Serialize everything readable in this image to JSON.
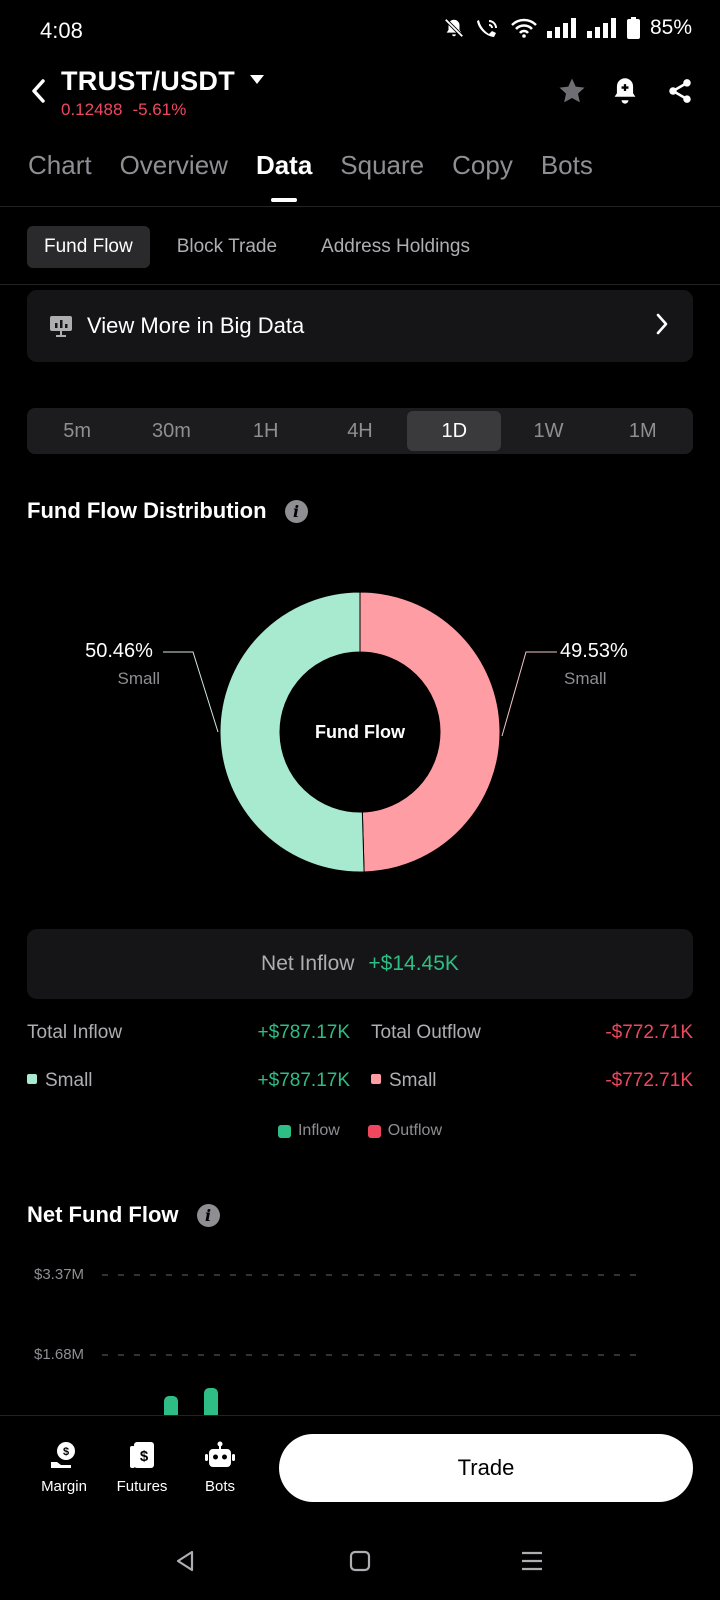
{
  "status_bar": {
    "time": "4:08",
    "battery": "85%"
  },
  "header": {
    "pair": "TRUST/USDT",
    "price": "0.12488",
    "change": "-5.61%"
  },
  "main_tabs": [
    "Chart",
    "Overview",
    "Data",
    "Square",
    "Copy",
    "Bots"
  ],
  "main_tabs_active": "Data",
  "sub_tabs": [
    "Fund Flow",
    "Block Trade",
    "Address Holdings"
  ],
  "sub_tabs_active": "Fund Flow",
  "big_data": {
    "label": "View More in Big Data"
  },
  "intervals": [
    "5m",
    "30m",
    "1H",
    "4H",
    "1D",
    "1W",
    "1M"
  ],
  "interval_active": "1D",
  "distribution": {
    "title": "Fund Flow Distribution",
    "center_label": "Fund Flow",
    "inflow": {
      "pct": "50.46%",
      "category": "Small"
    },
    "outflow": {
      "pct": "49.53%",
      "category": "Small"
    }
  },
  "chart_data": [
    {
      "type": "pie",
      "title": "Fund Flow Distribution",
      "categories": [
        "Small (Inflow)",
        "Small (Outflow)"
      ],
      "values": [
        50.46,
        49.53
      ],
      "colors": [
        "#a8ead0",
        "#ff9da4"
      ]
    },
    {
      "type": "bar",
      "title": "Net Fund Flow",
      "yticks": [
        "$3.37M",
        "$1.68M"
      ],
      "ylim": [
        0,
        3.37
      ]
    }
  ],
  "net": {
    "label": "Net Inflow",
    "value": "+$14.45K"
  },
  "totals": {
    "inflow_label": "Total Inflow",
    "inflow_value": "+$787.17K",
    "outflow_label": "Total Outflow",
    "outflow_value": "-$772.71K"
  },
  "small_row": {
    "inflow_label": "Small",
    "inflow_value": "+$787.17K",
    "outflow_label": "Small",
    "outflow_value": "-$772.71K"
  },
  "legend": {
    "inflow": "Inflow",
    "outflow": "Outflow"
  },
  "net_fund_flow": {
    "title": "Net Fund Flow",
    "tick_top": "$3.37M",
    "tick_mid": "$1.68M"
  },
  "bottom_nav": {
    "margin": "Margin",
    "futures": "Futures",
    "bots": "Bots",
    "trade": "Trade"
  },
  "colors": {
    "green": "#2ebd85",
    "red": "#f0475f",
    "donut_green": "#a8ead0",
    "donut_red": "#ff9da4"
  }
}
